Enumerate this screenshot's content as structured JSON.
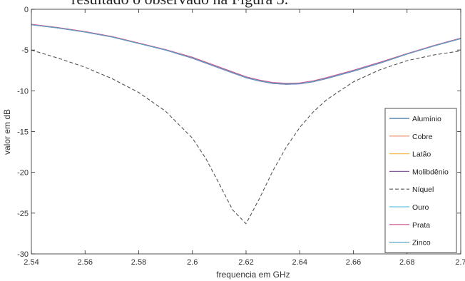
{
  "caption_fragment": "resultado o observado na Figura 3.",
  "chart_data": {
    "type": "line",
    "xlabel": "frequencia em GHz",
    "ylabel": "valor em dB",
    "xlim": [
      2.54,
      2.7
    ],
    "ylim": [
      -30,
      0
    ],
    "xticks": [
      "2.54",
      "2.56",
      "2.58",
      "2.6",
      "2.62",
      "2.64",
      "2.66",
      "2.68",
      "2.7"
    ],
    "yticks": [
      "-30",
      "-25",
      "-20",
      "-15",
      "-10",
      "-5",
      "0"
    ],
    "grid": false,
    "legend_position": "lower-right",
    "x": [
      2.54,
      2.55,
      2.56,
      2.57,
      2.58,
      2.59,
      2.6,
      2.605,
      2.61,
      2.615,
      2.62,
      2.625,
      2.63,
      2.635,
      2.64,
      2.645,
      2.65,
      2.66,
      2.67,
      2.68,
      2.69,
      2.7
    ],
    "series": [
      {
        "name": "Alumínio",
        "color": "#3b6ea5",
        "dash": "solid",
        "values": [
          -1.9,
          -2.3,
          -2.8,
          -3.4,
          -4.2,
          -5.0,
          -6.0,
          -6.6,
          -7.2,
          -7.8,
          -8.4,
          -8.8,
          -9.1,
          -9.2,
          -9.15,
          -8.9,
          -8.5,
          -7.6,
          -6.6,
          -5.5,
          -4.5,
          -3.6
        ]
      },
      {
        "name": "Cobre",
        "color": "#e8825a",
        "dash": "solid",
        "values": [
          -1.85,
          -2.25,
          -2.75,
          -3.35,
          -4.15,
          -4.95,
          -5.9,
          -6.5,
          -7.1,
          -7.7,
          -8.3,
          -8.7,
          -9.0,
          -9.1,
          -9.05,
          -8.8,
          -8.4,
          -7.5,
          -6.5,
          -5.45,
          -4.45,
          -3.55
        ]
      },
      {
        "name": "Latão",
        "color": "#f2b84b",
        "dash": "solid",
        "values": [
          -1.88,
          -2.28,
          -2.78,
          -3.38,
          -4.18,
          -4.98,
          -5.95,
          -6.55,
          -7.15,
          -7.75,
          -8.35,
          -8.75,
          -9.05,
          -9.15,
          -9.1,
          -8.85,
          -8.45,
          -7.55,
          -6.55,
          -5.48,
          -4.48,
          -3.58
        ]
      },
      {
        "name": "Molibdênio",
        "color": "#8a5aa0",
        "dash": "solid",
        "values": [
          -1.9,
          -2.3,
          -2.8,
          -3.4,
          -4.2,
          -5.0,
          -6.0,
          -6.6,
          -7.2,
          -7.8,
          -8.4,
          -8.8,
          -9.1,
          -9.2,
          -9.15,
          -8.9,
          -8.5,
          -7.6,
          -6.6,
          -5.5,
          -4.5,
          -3.6
        ]
      },
      {
        "name": "Níquel",
        "color": "#555555",
        "dash": "dashed",
        "values": [
          -5.0,
          -6.0,
          -7.1,
          -8.5,
          -10.2,
          -12.5,
          -15.8,
          -18.3,
          -21.4,
          -24.6,
          -26.3,
          -23.2,
          -19.8,
          -16.9,
          -14.5,
          -12.6,
          -11.1,
          -8.9,
          -7.4,
          -6.3,
          -5.6,
          -5.1
        ]
      },
      {
        "name": "Ouro",
        "color": "#6cc3e8",
        "dash": "solid",
        "values": [
          -1.87,
          -2.27,
          -2.77,
          -3.37,
          -4.17,
          -4.97,
          -5.93,
          -6.53,
          -7.13,
          -7.73,
          -8.33,
          -8.73,
          -9.03,
          -9.13,
          -9.08,
          -8.83,
          -8.43,
          -7.53,
          -6.53,
          -5.47,
          -4.47,
          -3.57
        ]
      },
      {
        "name": "Prata",
        "color": "#d04f8a",
        "dash": "solid",
        "values": [
          -1.84,
          -2.24,
          -2.74,
          -3.34,
          -4.14,
          -4.94,
          -5.88,
          -6.48,
          -7.08,
          -7.68,
          -8.28,
          -8.68,
          -8.98,
          -9.08,
          -9.03,
          -8.78,
          -8.38,
          -7.48,
          -6.48,
          -5.44,
          -4.44,
          -3.54
        ]
      },
      {
        "name": "Zinco",
        "color": "#58a8c8",
        "dash": "solid",
        "values": [
          -1.89,
          -2.29,
          -2.79,
          -3.39,
          -4.19,
          -4.99,
          -5.97,
          -6.57,
          -7.17,
          -7.77,
          -8.37,
          -8.77,
          -9.07,
          -9.17,
          -9.12,
          -8.87,
          -8.47,
          -7.57,
          -6.57,
          -5.49,
          -4.49,
          -3.59
        ]
      }
    ]
  }
}
